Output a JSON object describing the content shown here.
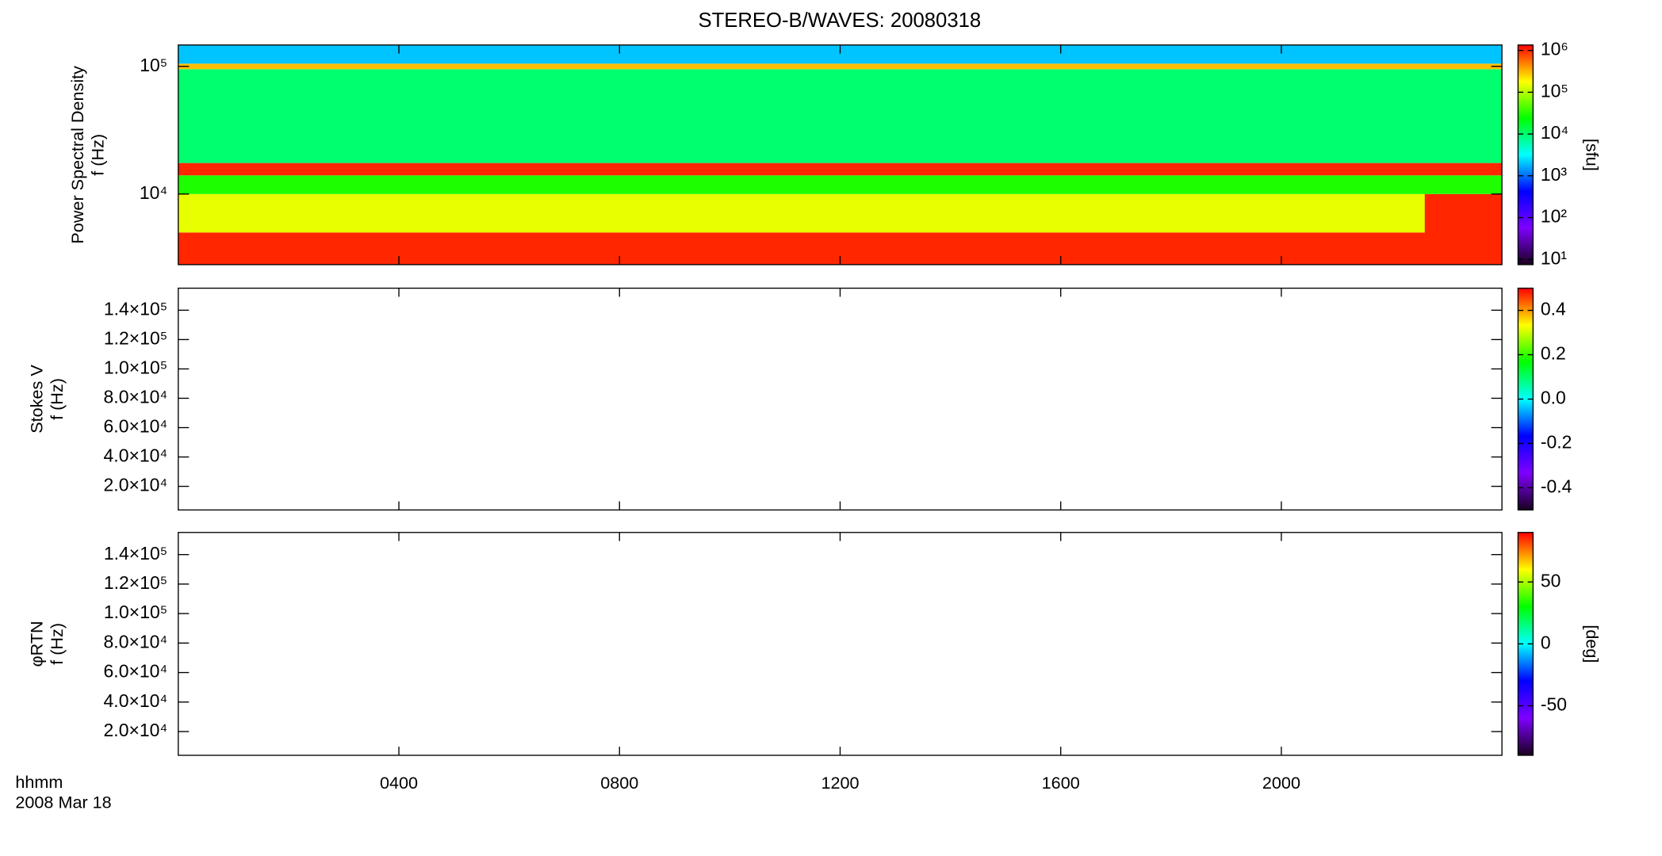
{
  "chart_data": [
    {
      "type": "spectrogram",
      "title": "STEREO-B/WAVES: 20080318",
      "ylabel": [
        "Power Spectral Density",
        "f (Hz)"
      ],
      "ylog": true,
      "ylim": [
        2800,
        147000
      ],
      "yticks": [
        {
          "value": 10000,
          "label": "10⁴"
        },
        {
          "value": 100000,
          "label": "10⁵"
        }
      ],
      "xlim": [
        0,
        24
      ],
      "clog": true,
      "clim": [
        7.5,
        1350000
      ],
      "cticks": [
        {
          "value": 10,
          "label": "10¹"
        },
        {
          "value": 100,
          "label": "10²"
        },
        {
          "value": 1000,
          "label": "10³"
        },
        {
          "value": 10000,
          "label": "10⁴"
        },
        {
          "value": 100000,
          "label": "10⁵"
        },
        {
          "value": 1000000,
          "label": "10⁶"
        }
      ],
      "clabel": "[sfu]",
      "colormap": [
        "#1a0020",
        "#7f00ff",
        "#0000ff",
        "#00ffff",
        "#00ff00",
        "#ffff00",
        "#ff0000"
      ],
      "cells": [
        {
          "t": [
            0,
            24
          ],
          "f": [
            2800,
            5000
          ],
          "level": 1000000
        },
        {
          "t": [
            0,
            24
          ],
          "f": [
            5000,
            10000
          ],
          "level": 150000
        },
        {
          "t": [
            22.6,
            24
          ],
          "f": [
            2800,
            10000
          ],
          "level": 1000000
        },
        {
          "t": [
            0,
            24
          ],
          "f": [
            10000,
            14000
          ],
          "level": 30000
        },
        {
          "t": [
            0,
            24
          ],
          "f": [
            14000,
            17500
          ],
          "level": 1000000
        },
        {
          "t": [
            0,
            24
          ],
          "f": [
            17500,
            95000
          ],
          "level": 10000
        },
        {
          "t": [
            0,
            24
          ],
          "f": [
            95000,
            105000
          ],
          "level": 300000
        },
        {
          "t": [
            0,
            24
          ],
          "f": [
            105000,
            147000
          ],
          "level": 2000
        }
      ]
    },
    {
      "type": "spectrogram",
      "ylabel": [
        "Stokes V",
        "f (Hz)"
      ],
      "ylog": false,
      "ylim": [
        3900,
        155000
      ],
      "yticks": [
        {
          "value": 20000,
          "label": "2.0×10⁴"
        },
        {
          "value": 40000,
          "label": "4.0×10⁴"
        },
        {
          "value": 60000,
          "label": "6.0×10⁴"
        },
        {
          "value": 80000,
          "label": "8.0×10⁴"
        },
        {
          "value": 100000,
          "label": "1.0×10⁵"
        },
        {
          "value": 120000,
          "label": "1.2×10⁵"
        },
        {
          "value": 140000,
          "label": "1.4×10⁵"
        }
      ],
      "xlim": [
        0,
        24
      ],
      "clog": false,
      "clim": [
        -0.5,
        0.5
      ],
      "cticks": [
        -0.4,
        -0.2,
        {
          "value": 0,
          "label": "0.0"
        },
        0.2,
        0.4
      ],
      "colormap": [
        "#1a0020",
        "#7f00ff",
        "#0000ff",
        "#00ffff",
        "#00ff00",
        "#ffff00",
        "#ff0000"
      ],
      "cells": []
    },
    {
      "type": "spectrogram",
      "ylabel": [
        "φRTN",
        "f (Hz)"
      ],
      "ylog": false,
      "ylim": [
        3900,
        155000
      ],
      "yticks": [
        {
          "value": 20000,
          "label": "2.0×10⁴"
        },
        {
          "value": 40000,
          "label": "4.0×10⁴"
        },
        {
          "value": 60000,
          "label": "6.0×10⁴"
        },
        {
          "value": 80000,
          "label": "8.0×10⁴"
        },
        {
          "value": 100000,
          "label": "1.0×10⁵"
        },
        {
          "value": 120000,
          "label": "1.2×10⁵"
        },
        {
          "value": 140000,
          "label": "1.4×10⁵"
        }
      ],
      "xlim": [
        0,
        24
      ],
      "xticks": [
        {
          "value": 4,
          "label": "0400"
        },
        {
          "value": 8,
          "label": "0800"
        },
        {
          "value": 12,
          "label": "1200"
        },
        {
          "value": 16,
          "label": "1600"
        },
        {
          "value": 20,
          "label": "2000"
        }
      ],
      "xlabel": [
        "hhmm",
        "2008 Mar 18"
      ],
      "clog": false,
      "clim": [
        -90,
        90
      ],
      "cticks": [
        -50,
        0,
        50
      ],
      "clabel": "[deg]",
      "colormap": [
        "#1a0020",
        "#7f00ff",
        "#0000ff",
        "#00ffff",
        "#00ff00",
        "#ffff00",
        "#ff0000"
      ],
      "cells": []
    }
  ]
}
